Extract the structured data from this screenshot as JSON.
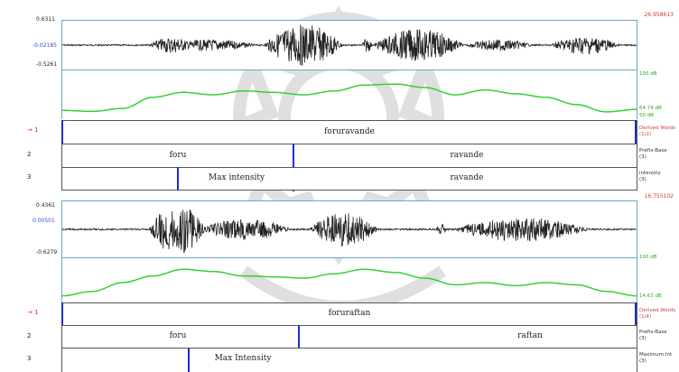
{
  "panels": [
    {
      "time_label": "26.958613",
      "wave": {
        "max": "0.6311",
        "current": "-0.02185",
        "min": "-0.5261"
      },
      "pitch_top": "100 dB",
      "pitch_val": "64.74 dB",
      "pitch_bottom": "50 dB",
      "tier1": {
        "num": "1",
        "text": "foruravande",
        "label": "Derived Words",
        "count": "(1/2)"
      },
      "tier2": {
        "num": "2",
        "text_a": "foru",
        "text_b": "ravande",
        "label": "Prefix-Base",
        "count": "(3)"
      },
      "tier3": {
        "num": "3",
        "text_a": "Max intensity",
        "text_b": "ravande",
        "label": "intensity",
        "count": "(3)"
      }
    },
    {
      "time_label": "16.755102",
      "wave": {
        "max": "0.4361",
        "current": "0.00501",
        "min": "-0.6279"
      },
      "pitch_top": "100 dB",
      "pitch_val": "14.63 dB",
      "pitch_bottom": "",
      "tier1": {
        "num": "1",
        "text": "foruraftan",
        "label": "Derived Words",
        "count": "(1/4)"
      },
      "tier2": {
        "num": "2",
        "text_a": "foru",
        "text_b": "raftan",
        "label": "Prefix-Base",
        "count": "(3)"
      },
      "tier3": {
        "num": "3",
        "text_a": "Max Intensity",
        "text_b": "",
        "label": "Maximum Int",
        "count": "(3)"
      }
    }
  ],
  "colors": {
    "pitch": "#33d133",
    "boundary": "#1a2fd0",
    "frame": "#6aa8c8",
    "red": "#d23a3a"
  }
}
